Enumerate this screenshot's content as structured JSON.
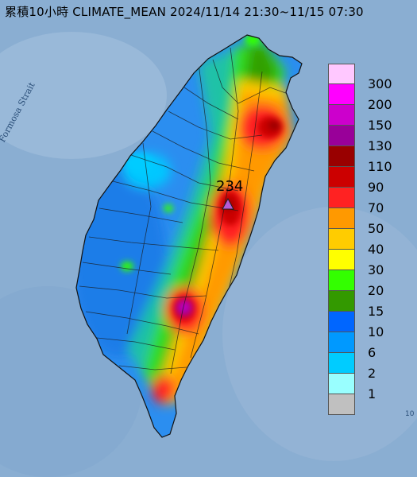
{
  "title": "累積10小時 CLIMATE_MEAN 2024/11/14 21:30~11/15 07:30",
  "sea_label": "Formosa Strait",
  "max_value": "234",
  "corner_mark": "10",
  "colors": {
    "ocean": "#8aaed2",
    "max_marker": "#b45cd6"
  },
  "legend": {
    "labels": [
      "300",
      "200",
      "150",
      "130",
      "110",
      "90",
      "70",
      "50",
      "40",
      "30",
      "20",
      "15",
      "10",
      "6",
      "2",
      "1"
    ],
    "colors": [
      "#ffc8ff",
      "#ff00ff",
      "#cc00cc",
      "#990099",
      "#990000",
      "#cc0000",
      "#ff2222",
      "#ff9900",
      "#ffcc00",
      "#ffff00",
      "#33ff00",
      "#339900",
      "#0066ff",
      "#0099ff",
      "#00ccff",
      "#99ffff",
      "#c0c0c0"
    ]
  }
}
